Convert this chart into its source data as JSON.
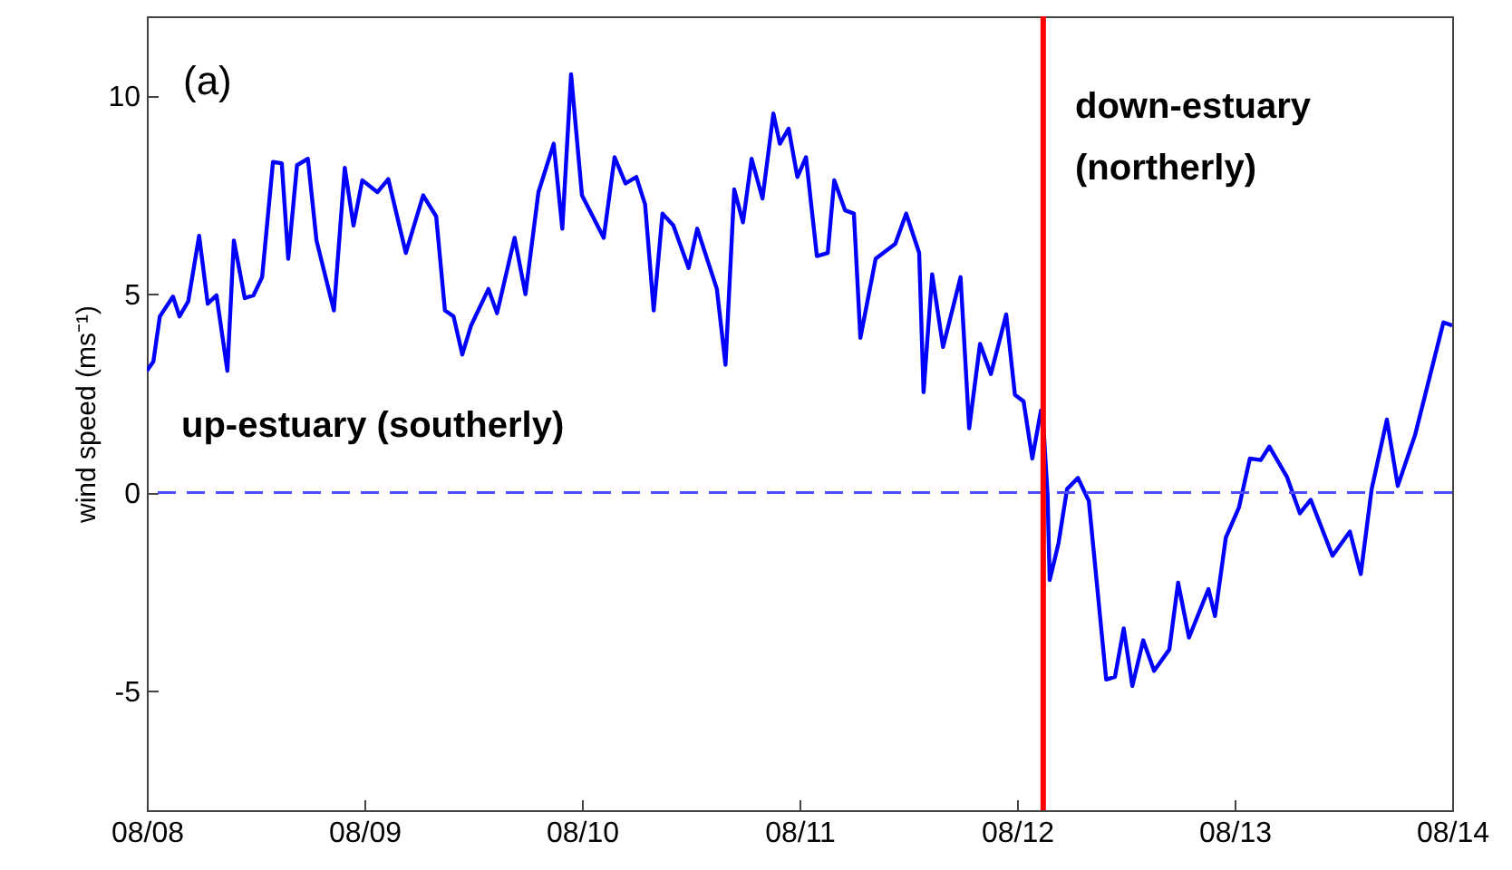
{
  "chart_data": {
    "type": "line",
    "ylabel": "wind speed (ms⁻¹)",
    "annotations": [
      "(a)",
      "up-estuary (southerly)",
      "down-estuary (northerly)"
    ],
    "xlim": [
      "--08-08",
      "--08-14"
    ],
    "ylim": [
      -8,
      12
    ],
    "xticks": [
      {
        "value": "--08-08",
        "label": "08/08"
      },
      {
        "value": "--08-09",
        "label": "08/09"
      },
      {
        "value": "--08-10",
        "label": "08/10"
      },
      {
        "value": "--08-11",
        "label": "08/11"
      },
      {
        "value": "--08-12",
        "label": "08/12"
      },
      {
        "value": "--08-13",
        "label": "08/13"
      },
      {
        "value": "--08-14",
        "label": "08/14"
      }
    ],
    "yticks": [
      -5,
      0,
      5,
      10
    ],
    "grid": false,
    "line_style": "solid",
    "ref_lines": [
      {
        "axis": "y",
        "value": 0,
        "color": "#4d4dff",
        "line_style": "dashed"
      },
      {
        "axis": "x",
        "value": "--08-12T02:53",
        "color": "#ff0000",
        "line_style": "solid"
      }
    ],
    "x": [
      "--08-08T00:00",
      "--08-08T00:43",
      "--08-08T01:26",
      "--08-08T02:53",
      "--08-08T03:36",
      "--08-08T04:34",
      "--08-08T05:46",
      "--08-08T06:43",
      "--08-08T07:41",
      "--08-08T08:53",
      "--08-08T09:36",
      "--08-08T10:48",
      "--08-08T11:46",
      "--08-08T12:43",
      "--08-08T13:55",
      "--08-08T14:53",
      "--08-08T15:36",
      "--08-08T16:34",
      "--08-08T17:46",
      "--08-08T18:43",
      "--08-08T20:38",
      "--08-08T21:50",
      "--08-08T22:48",
      "--08-08T23:46",
      "--08-09T01:26",
      "--08-09T02:38",
      "--08-09T04:34",
      "--08-09T06:29",
      "--08-09T07:55",
      "--08-09T08:53",
      "--08-09T09:50",
      "--08-09T10:48",
      "--08-09T11:46",
      "--08-09T13:41",
      "--08-09T14:38",
      "--08-09T16:34",
      "--08-09T17:46",
      "--08-09T19:12",
      "--08-09T20:53",
      "--08-09T21:50",
      "--08-09T22:48",
      "--08-10T00:00",
      "--08-10T02:24",
      "--08-10T03:36",
      "--08-10T04:48",
      "--08-10T06:00",
      "--08-10T06:58",
      "--08-10T07:55",
      "--08-10T08:53",
      "--08-10T10:05",
      "--08-10T11:46",
      "--08-10T12:43",
      "--08-10T14:53",
      "--08-10T15:50",
      "--08-10T16:48",
      "--08-10T17:46",
      "--08-10T18:43",
      "--08-10T19:55",
      "--08-10T21:07",
      "--08-10T21:50",
      "--08-10T22:48",
      "--08-10T23:46",
      "--08-11T00:43",
      "--08-11T01:55",
      "--08-11T03:07",
      "--08-11T03:50",
      "--08-11T05:02",
      "--08-11T06:00",
      "--08-11T06:43",
      "--08-11T08:24",
      "--08-11T10:34",
      "--08-11T11:46",
      "--08-11T13:12",
      "--08-11T13:41",
      "--08-11T14:38",
      "--08-11T15:50",
      "--08-11T17:46",
      "--08-11T18:43",
      "--08-11T19:55",
      "--08-11T21:07",
      "--08-11T22:48",
      "--08-11T23:46",
      "--08-12T00:43",
      "--08-12T01:41",
      "--08-12T02:38",
      "--08-12T02:53",
      "--08-12T03:22",
      "--08-12T03:36",
      "--08-12T04:34",
      "--08-12T05:31",
      "--08-12T06:43",
      "--08-12T07:55",
      "--08-12T09:50",
      "--08-12T10:48",
      "--08-12T11:46",
      "--08-12T12:43",
      "--08-12T13:55",
      "--08-12T15:07",
      "--08-12T16:48",
      "--08-12T17:46",
      "--08-12T18:58",
      "--08-12T21:07",
      "--08-12T21:50",
      "--08-12T23:02",
      "--08-13T00:29",
      "--08-13T01:41",
      "--08-13T02:53",
      "--08-13T03:50",
      "--08-13T05:46",
      "--08-13T07:12",
      "--08-13T08:24",
      "--08-13T10:48",
      "--08-13T12:43",
      "--08-13T13:55",
      "--08-13T15:07",
      "--08-13T16:48",
      "--08-13T18:00",
      "--08-13T19:55",
      "--08-13T23:02",
      "--08-14T00:00"
    ],
    "series": [
      {
        "color": "#0000ff",
        "values": [
          3.07,
          3.3,
          4.44,
          4.94,
          4.44,
          4.82,
          6.47,
          4.76,
          4.97,
          3.07,
          6.35,
          4.9,
          4.97,
          5.43,
          8.33,
          8.3,
          5.89,
          8.25,
          8.41,
          6.35,
          4.59,
          8.18,
          6.73,
          7.87,
          7.57,
          7.9,
          6.04,
          7.49,
          6.96,
          4.59,
          4.44,
          3.48,
          4.21,
          5.13,
          4.52,
          6.42,
          5.0,
          7.57,
          8.79,
          6.65,
          10.54,
          7.49,
          6.42,
          8.45,
          7.79,
          7.95,
          7.26,
          4.59,
          7.03,
          6.73,
          5.66,
          6.65,
          5.13,
          3.22,
          7.64,
          6.81,
          8.41,
          7.41,
          9.55,
          8.79,
          9.17,
          7.95,
          8.45,
          5.96,
          6.04,
          7.87,
          7.11,
          7.03,
          3.9,
          5.89,
          6.27,
          7.03,
          6.04,
          2.53,
          5.5,
          3.67,
          5.43,
          1.62,
          3.75,
          2.99,
          4.49,
          2.46,
          2.3,
          0.86,
          2.07,
          1.77,
          -0.06,
          -2.2,
          -1.28,
          0.09,
          0.37,
          -0.21,
          -4.71,
          -4.64,
          -3.42,
          -4.87,
          -3.72,
          -4.49,
          -3.95,
          -2.27,
          -3.65,
          -2.43,
          -3.11,
          -1.13,
          -0.37,
          0.86,
          0.82,
          1.16,
          0.4,
          -0.52,
          -0.18,
          -1.59,
          -0.98,
          -2.05,
          0.09,
          1.84,
          0.17,
          1.46,
          4.29,
          4.21
        ]
      }
    ]
  }
}
